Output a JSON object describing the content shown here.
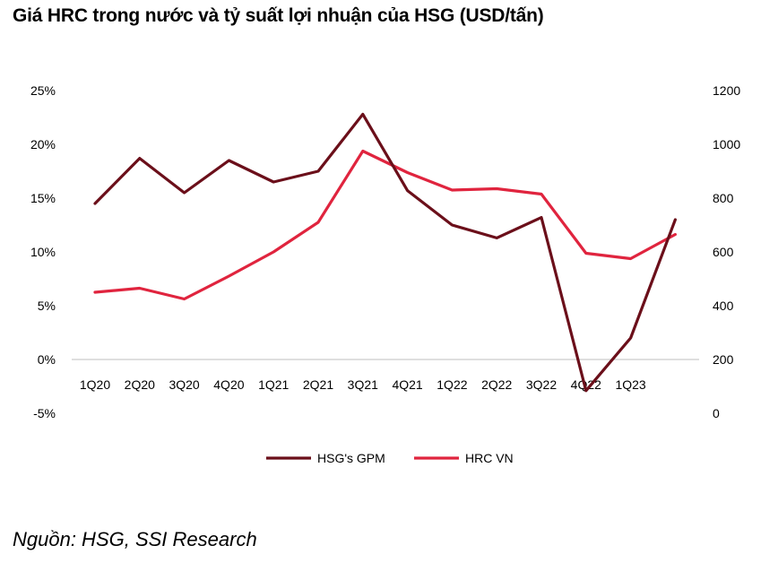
{
  "chart_data": {
    "type": "line",
    "title": "Giá HRC trong nước và tỷ suất lợi nhuận của HSG (USD/tấn)",
    "source": "Nguồn: HSG, SSI Research",
    "categories": [
      "1Q20",
      "2Q20",
      "3Q20",
      "4Q20",
      "1Q21",
      "2Q21",
      "3Q21",
      "4Q21",
      "1Q22",
      "2Q22",
      "3Q22",
      "4Q22",
      "1Q23",
      ""
    ],
    "axes": {
      "left": {
        "min": -5,
        "max": 25,
        "ticks": [
          "25%",
          "20%",
          "15%",
          "10%",
          "5%",
          "0%",
          "-5%"
        ],
        "tick_values": [
          25,
          20,
          15,
          10,
          5,
          0,
          -5
        ]
      },
      "right": {
        "min": 0,
        "max": 1200,
        "ticks": [
          "1200",
          "1000",
          "800",
          "600",
          "400",
          "200",
          "0"
        ],
        "tick_values": [
          1200,
          1000,
          800,
          600,
          400,
          200,
          0
        ]
      }
    },
    "grid": false,
    "legend_position": "bottom",
    "series": [
      {
        "name": "HSG's GPM",
        "axis": "left",
        "color": "#6b0f1a",
        "values": [
          14.5,
          18.7,
          15.5,
          18.5,
          16.5,
          17.5,
          22.8,
          15.7,
          12.5,
          11.3,
          13.2,
          -2.9,
          2.0,
          13.0
        ]
      },
      {
        "name": "HRC VN",
        "axis": "right",
        "color": "#e0243e",
        "values": [
          450,
          465,
          425,
          510,
          600,
          710,
          975,
          895,
          830,
          835,
          815,
          595,
          575,
          665
        ]
      }
    ]
  }
}
